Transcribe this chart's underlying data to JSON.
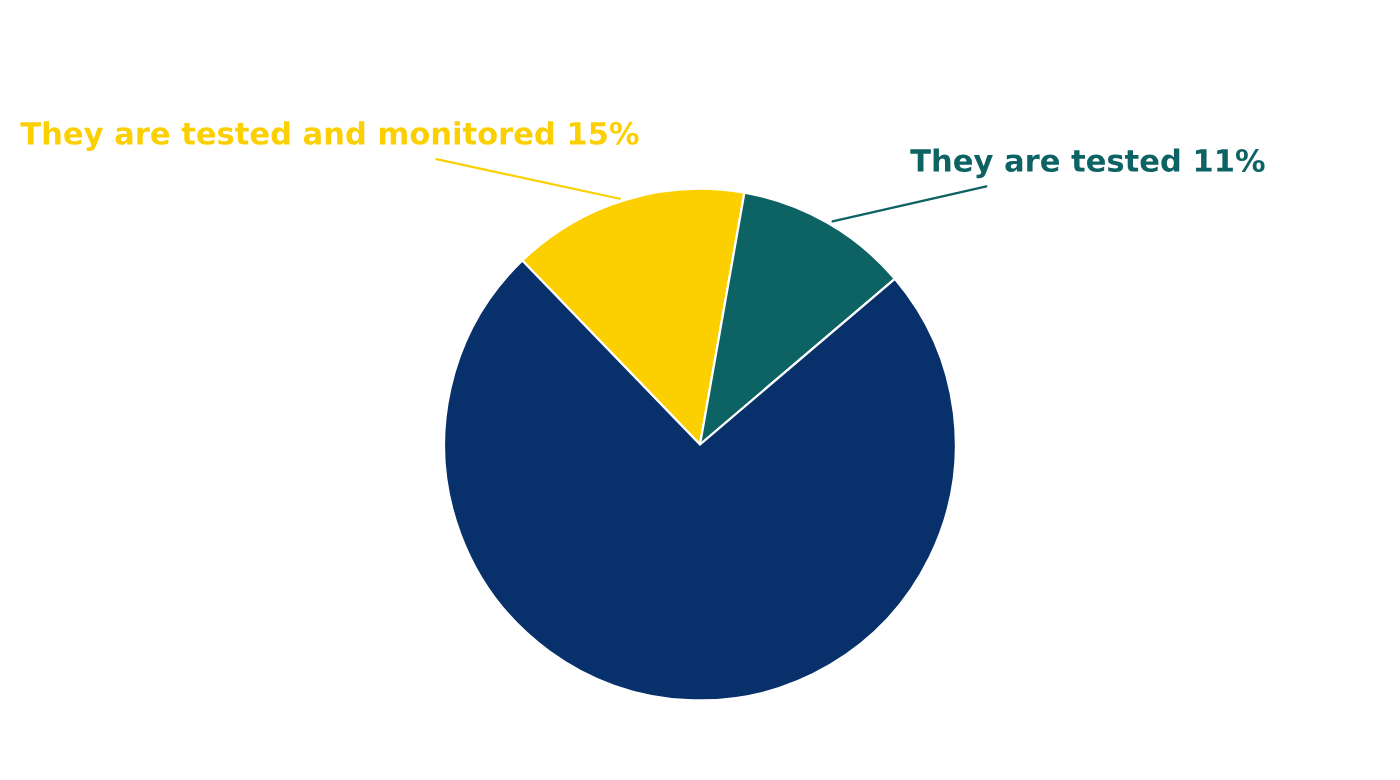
{
  "chart_data": {
    "type": "pie",
    "categories": [
      "They are tested and monitored",
      "They are tested",
      null
    ],
    "values": [
      15,
      11,
      74
    ],
    "value_labels": [
      "15%",
      "11%",
      null
    ],
    "colors": [
      "#fccf00",
      "#0d6264",
      "#08316b"
    ],
    "legend": false
  }
}
